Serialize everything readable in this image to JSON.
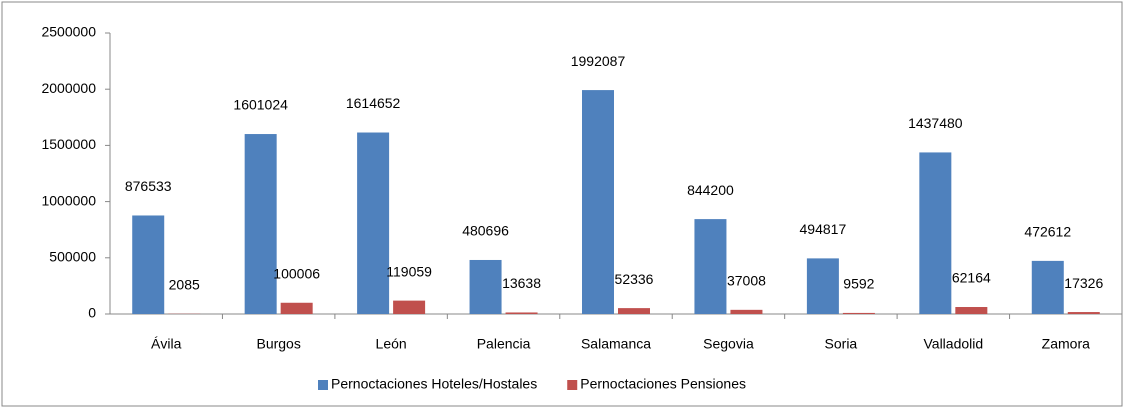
{
  "chart_data": {
    "type": "bar",
    "categories": [
      "Ávila",
      "Burgos",
      "León",
      "Palencia",
      "Salamanca",
      "Segovia",
      "Soria",
      "Valladolid",
      "Zamora"
    ],
    "series": [
      {
        "name": "Pernoctaciones Hoteles/Hostales",
        "color": "#4f81bd",
        "values": [
          876533,
          1601024,
          1614652,
          480696,
          1992087,
          844200,
          494817,
          1437480,
          472612
        ]
      },
      {
        "name": "Pernoctaciones Pensiones",
        "color": "#c0504d",
        "values": [
          2085,
          100006,
          119059,
          13638,
          52336,
          37008,
          9592,
          62164,
          17326
        ]
      }
    ],
    "ylim": [
      0,
      2500000
    ],
    "yticks": [
      0,
      500000,
      1000000,
      1500000,
      2000000,
      2500000
    ],
    "grid": false,
    "legend": "bottom"
  }
}
